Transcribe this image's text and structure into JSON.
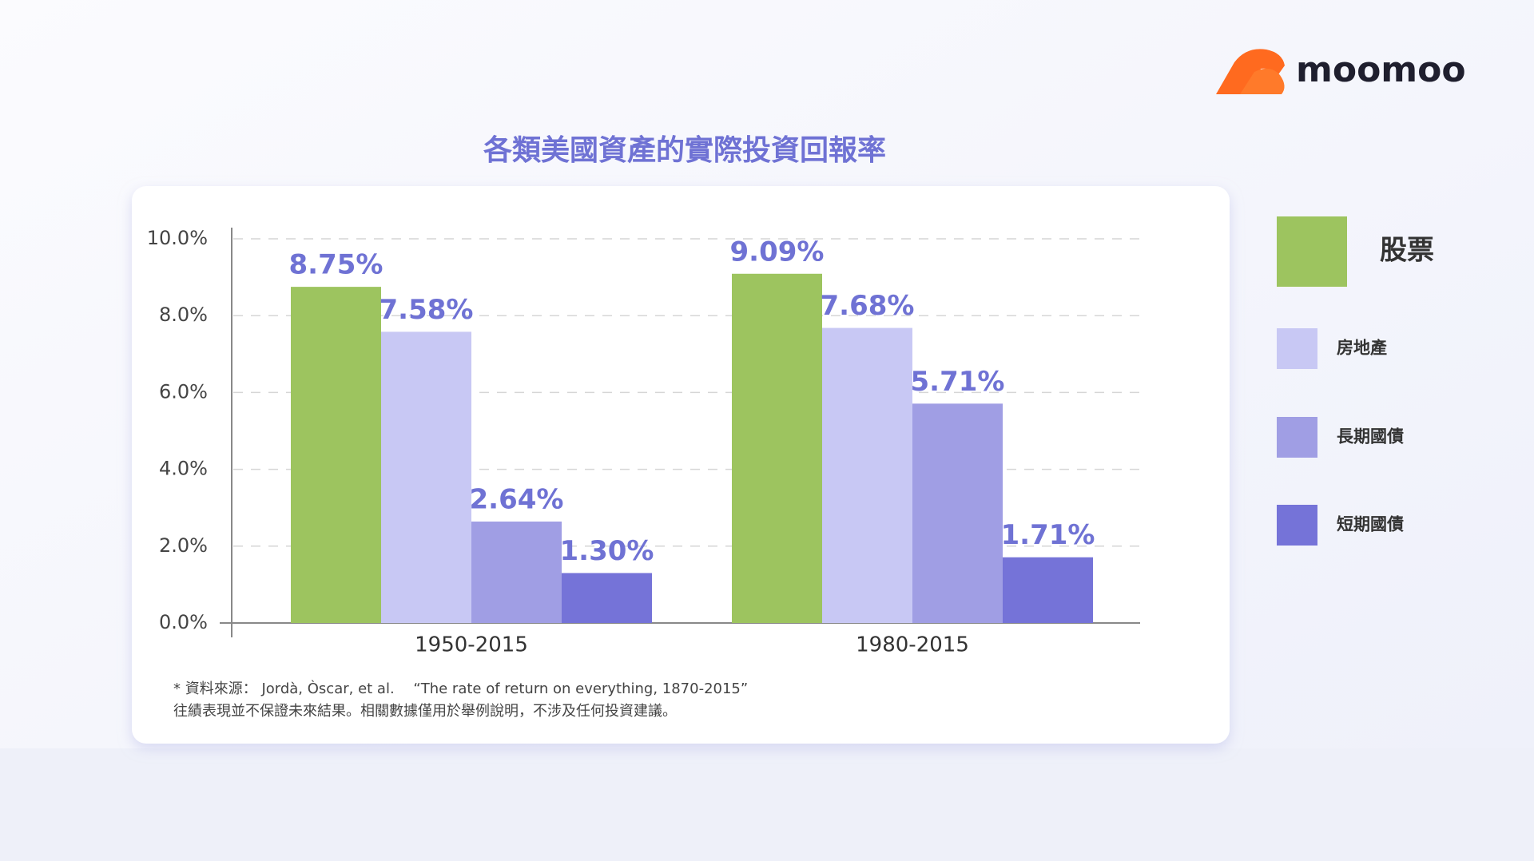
{
  "brand": "moomoo",
  "chart_data": {
    "type": "bar",
    "title": "各類美國資產的實際投資回報率",
    "categories": [
      "1950-2015",
      "1980-2015"
    ],
    "series": [
      {
        "name": "股票",
        "color": "#9dc45f",
        "values": [
          8.75,
          9.09
        ],
        "value_labels": [
          "8.75%",
          "9.09%"
        ]
      },
      {
        "name": "房地產",
        "color": "#c8c8f4",
        "values": [
          7.58,
          7.68
        ],
        "value_labels": [
          "7.58%",
          "7.68%"
        ]
      },
      {
        "name": "長期國債",
        "color": "#a09ee4",
        "values": [
          2.64,
          5.71
        ],
        "value_labels": [
          "2.64%",
          "5.71%"
        ]
      },
      {
        "name": "短期國債",
        "color": "#7573d8",
        "values": [
          1.3,
          1.71
        ],
        "value_labels": [
          "1.30%",
          "1.71%"
        ]
      }
    ],
    "ylim": [
      0,
      10
    ],
    "yticks": [
      {
        "value": 0,
        "label": "0.0%"
      },
      {
        "value": 2,
        "label": "2.0%"
      },
      {
        "value": 4,
        "label": "4.0%"
      },
      {
        "value": 6,
        "label": "6.0%"
      },
      {
        "value": 8,
        "label": "8.0%"
      },
      {
        "value": 10,
        "label": "10.0%"
      }
    ],
    "grid": true,
    "legend": "right",
    "source": "* 資料來源： Jordà, Òscar, et al.　 “The rate of return on everything, 1870-2015”",
    "disclaimer": "往績表現並不保證未來結果。相關數據僅用於舉例說明，不涉及任何投資建議。"
  }
}
